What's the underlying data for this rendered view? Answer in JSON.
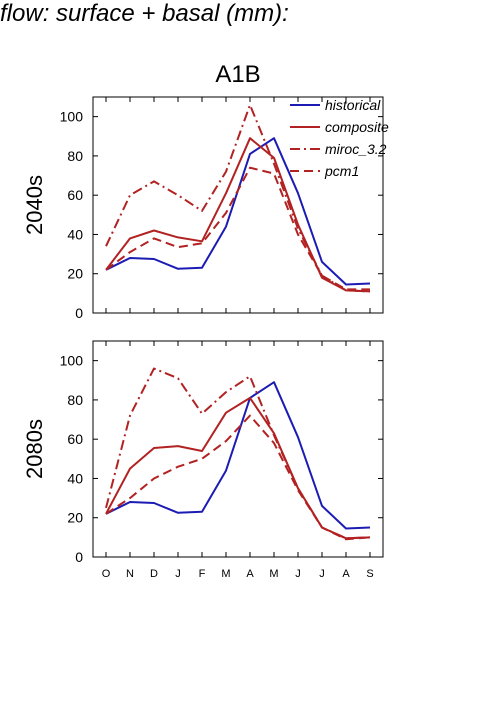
{
  "figure": {
    "title": "d flow: surface + basal (mm):",
    "scenario": "A1B"
  },
  "chart_data": [
    {
      "type": "line",
      "panel_label": "2040s",
      "categories": [
        "O",
        "N",
        "D",
        "J",
        "F",
        "M",
        "A",
        "M",
        "J",
        "J",
        "A",
        "S"
      ],
      "ylim": [
        0,
        110
      ],
      "yticks": [
        0,
        20,
        40,
        60,
        80,
        100
      ],
      "legend_position": "top-right",
      "series": [
        {
          "name": "historical",
          "color": "#1c1cb4",
          "dash": "solid",
          "values": [
            22,
            28,
            27.5,
            22.5,
            23,
            44,
            81,
            89,
            61,
            26,
            14.5,
            15
          ]
        },
        {
          "name": "composite",
          "color": "#b22222",
          "dash": "solid",
          "values": [
            22,
            38,
            42,
            38.5,
            36.5,
            61,
            89,
            79,
            45,
            18,
            11.5,
            11
          ]
        },
        {
          "name": "miroc_3.2",
          "color": "#b22222",
          "dash": "dashdot",
          "values": [
            34,
            60,
            67,
            60,
            52,
            72,
            106,
            76,
            43,
            19,
            11.5,
            11
          ]
        },
        {
          "name": "pcm1",
          "color": "#b22222",
          "dash": "dashed",
          "values": [
            22,
            31,
            38,
            33.5,
            35.5,
            51,
            74,
            71,
            40,
            19,
            12,
            12
          ]
        }
      ]
    },
    {
      "type": "line",
      "panel_label": "2080s",
      "categories": [
        "O",
        "N",
        "D",
        "J",
        "F",
        "M",
        "A",
        "M",
        "J",
        "J",
        "A",
        "S"
      ],
      "ylim": [
        0,
        110
      ],
      "yticks": [
        0,
        20,
        40,
        60,
        80,
        100
      ],
      "series": [
        {
          "name": "historical",
          "color": "#1c1cb4",
          "dash": "solid",
          "values": [
            22,
            28,
            27.5,
            22.5,
            23,
            44,
            81,
            89,
            61,
            26,
            14.5,
            15
          ]
        },
        {
          "name": "composite",
          "color": "#b22222",
          "dash": "solid",
          "values": [
            22,
            45,
            55.5,
            56.5,
            54,
            73.5,
            81,
            63,
            35,
            15,
            9.5,
            10
          ]
        },
        {
          "name": "miroc_3.2",
          "color": "#b22222",
          "dash": "dashdot",
          "values": [
            25,
            72,
            96,
            91,
            73,
            84,
            92,
            62,
            35,
            15,
            9.5,
            10
          ]
        },
        {
          "name": "pcm1",
          "color": "#b22222",
          "dash": "dashed",
          "values": [
            22,
            30,
            40,
            46,
            50,
            59,
            72,
            58,
            34,
            15,
            9,
            10
          ]
        }
      ]
    }
  ]
}
